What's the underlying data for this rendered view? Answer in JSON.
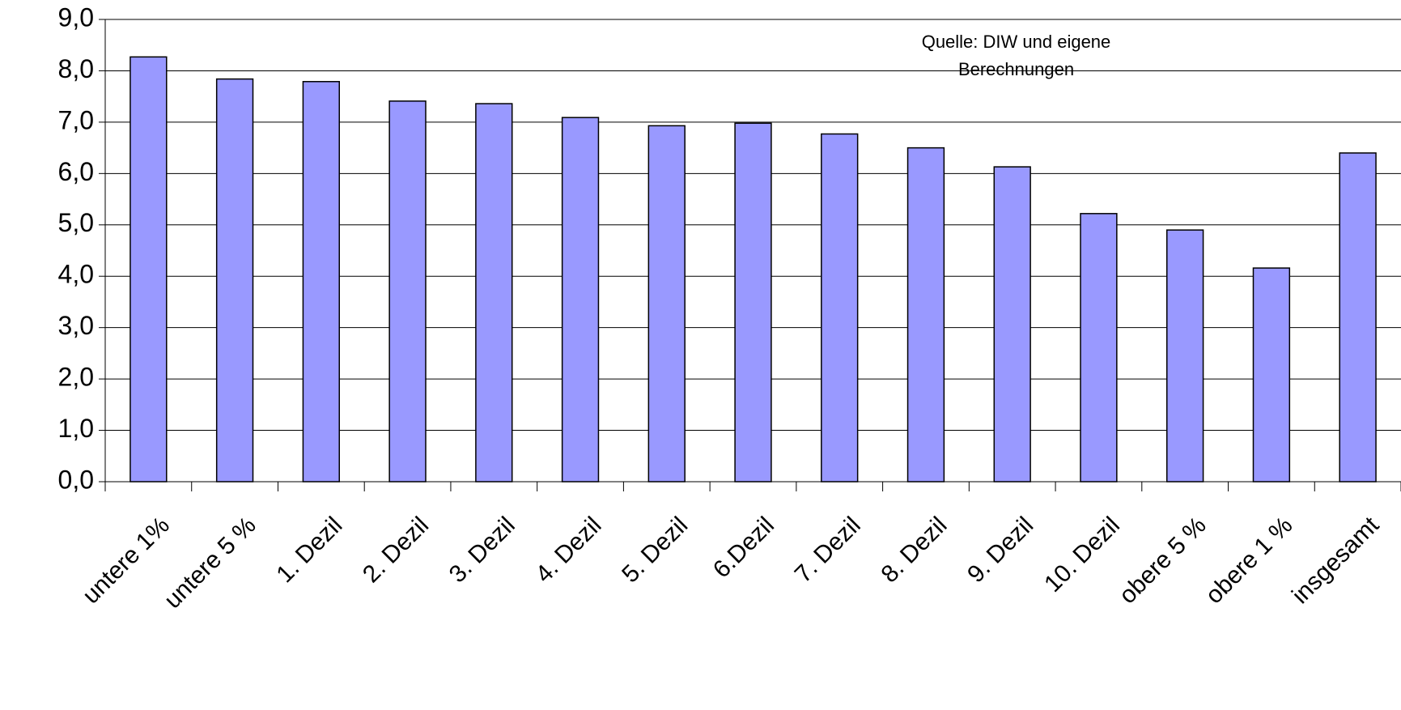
{
  "chart_data": {
    "type": "bar",
    "annotation": [
      "Quelle: DIW und eigene",
      "Berechnungen"
    ],
    "categories": [
      "untere 1%",
      "untere 5 %",
      "1. Dezil",
      "2. Dezil",
      "3. Dezil",
      "4. Dezil",
      "5. Dezil",
      "6.Dezil",
      "7. Dezil",
      "8. Dezil",
      "9. Dezil",
      "10. Dezil",
      "obere 5 %",
      "obere 1 %",
      "insgesamt"
    ],
    "values": [
      8.27,
      7.84,
      7.79,
      7.41,
      7.36,
      7.09,
      6.93,
      6.98,
      6.77,
      6.5,
      6.13,
      5.22,
      4.9,
      4.16,
      6.4
    ],
    "color": "#9999ff",
    "ylim": [
      0,
      9
    ],
    "yticks": [
      {
        "value": 0,
        "label": "0,0"
      },
      {
        "value": 1,
        "label": "1,0"
      },
      {
        "value": 2,
        "label": "2,0"
      },
      {
        "value": 3,
        "label": "3,0"
      },
      {
        "value": 4,
        "label": "4,0"
      },
      {
        "value": 5,
        "label": "5,0"
      },
      {
        "value": 6,
        "label": "6,0"
      },
      {
        "value": 7,
        "label": "7,0"
      },
      {
        "value": 8,
        "label": "8,0"
      },
      {
        "value": 9,
        "label": "9,0"
      }
    ],
    "grid": true
  }
}
